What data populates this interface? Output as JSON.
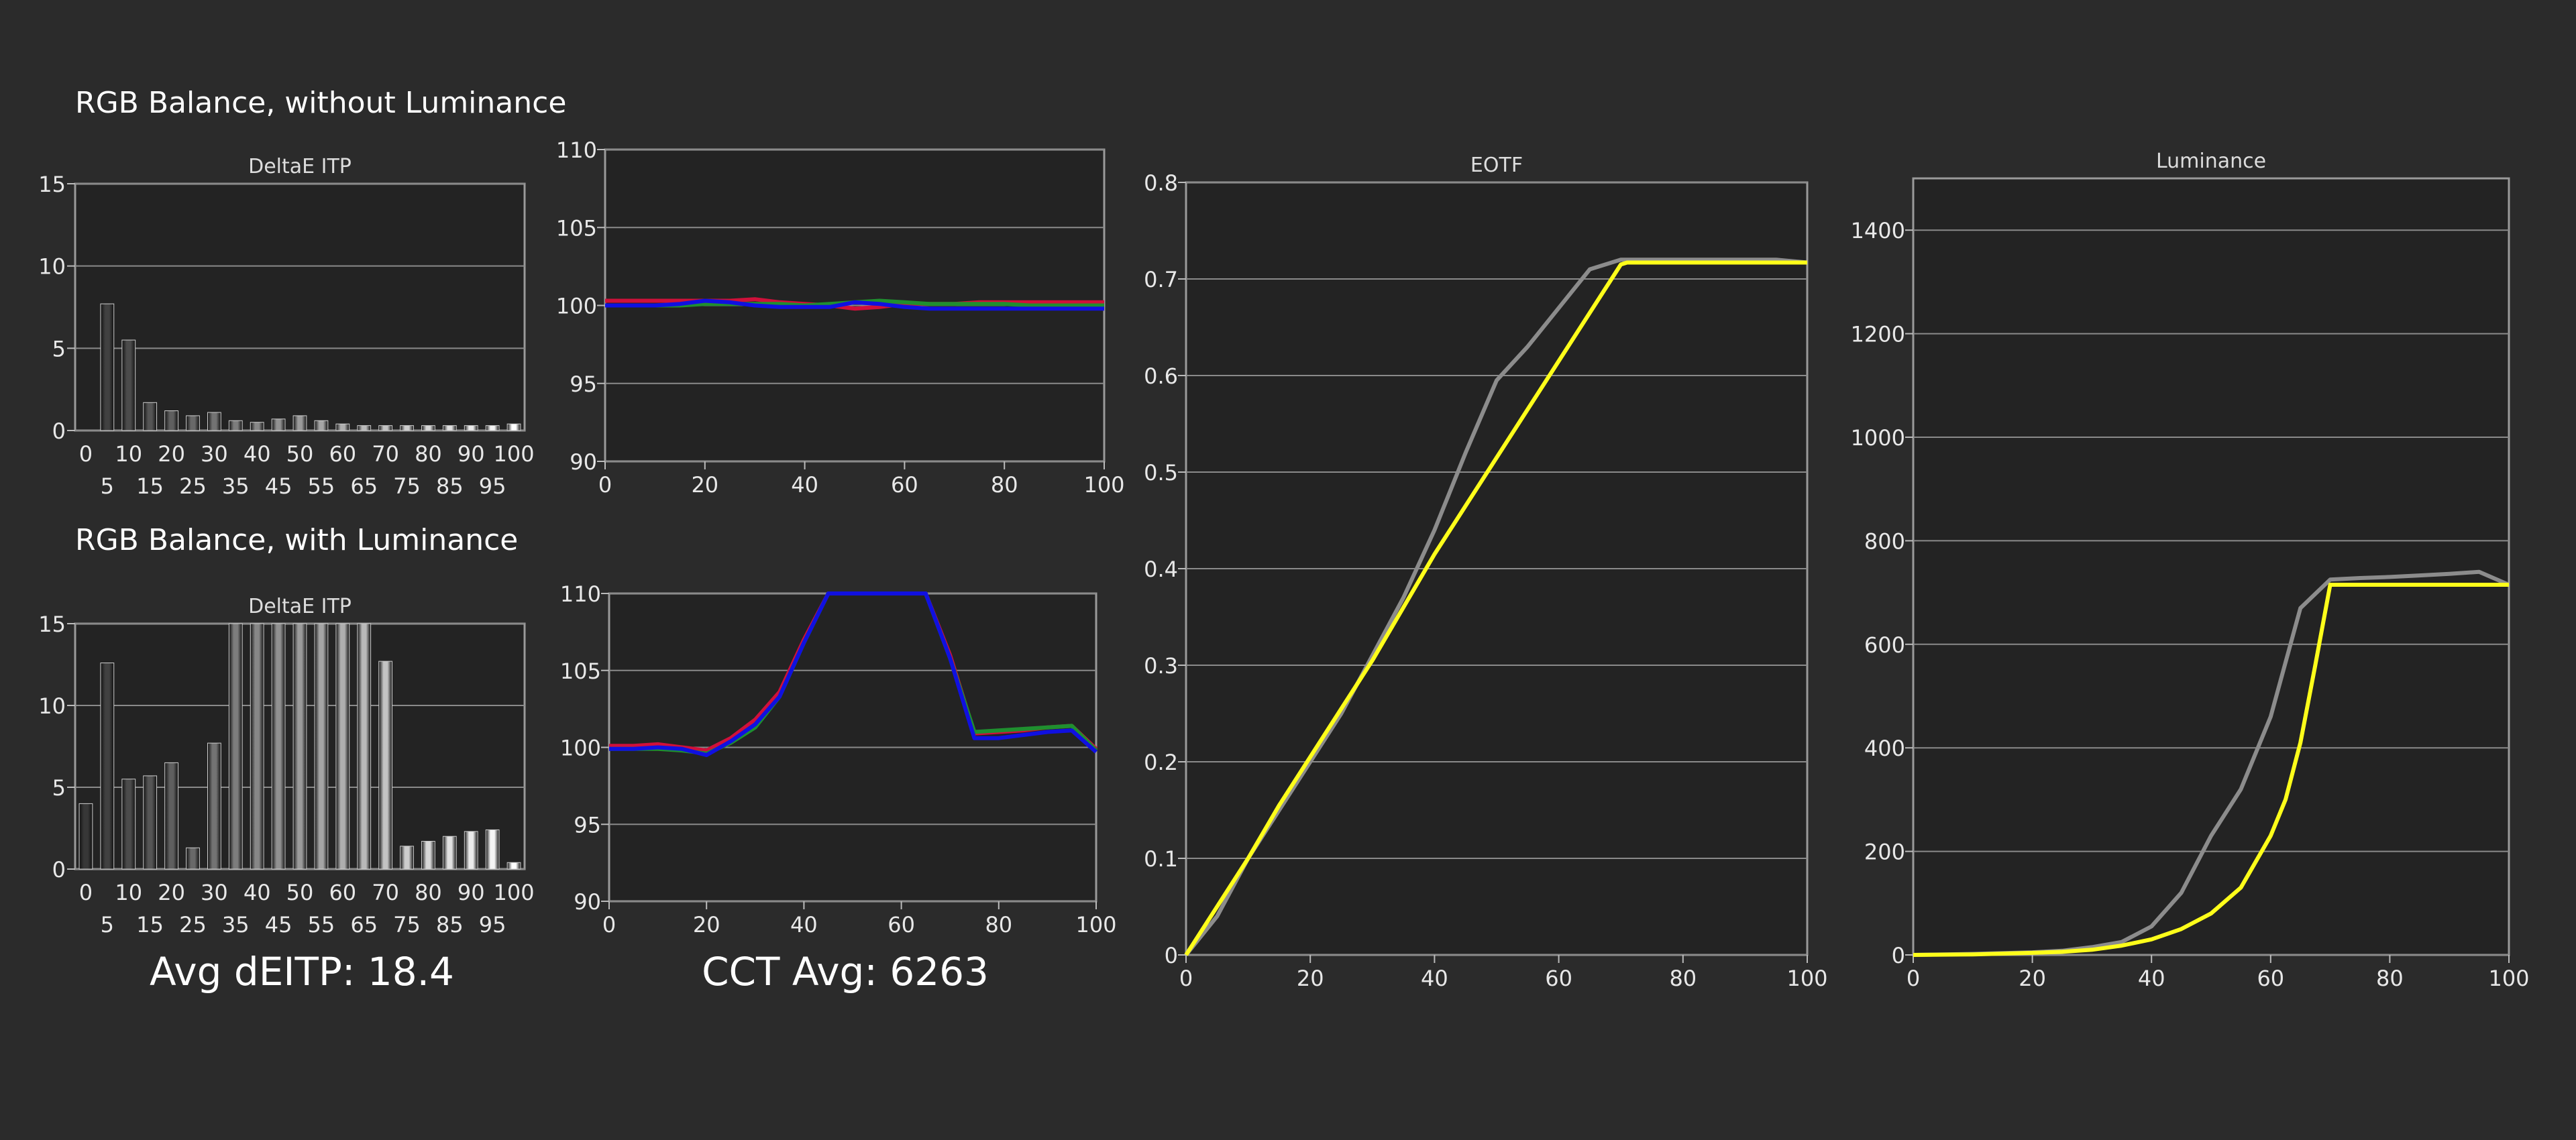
{
  "page": {
    "section_title_1": "RGB Balance, without Luminance",
    "section_title_2": "RGB Balance, with Luminance",
    "avg_deitp": "Avg dEITP: 18.4",
    "cct_avg": "CCT Avg: 6263"
  },
  "colors": {
    "background": "#2b2b2b",
    "plot_bg": "#232323",
    "grid": "#8a8a8a",
    "red": "#d0103a",
    "green": "#1f8f2f",
    "blue": "#1010e0",
    "gray": "#8c8c8c",
    "yellow": "#ffff1a"
  },
  "chart_data": [
    {
      "id": "deltae-without",
      "type": "bar",
      "title": "DeltaE ITP",
      "categories": [
        "0",
        "5",
        "10",
        "15",
        "20",
        "25",
        "30",
        "35",
        "40",
        "45",
        "50",
        "55",
        "60",
        "65",
        "70",
        "75",
        "80",
        "85",
        "90",
        "95",
        "100"
      ],
      "values": [
        0,
        7.7,
        5.5,
        1.7,
        1.2,
        0.9,
        1.1,
        0.6,
        0.5,
        0.7,
        0.9,
        0.6,
        0.4,
        0.3,
        0.3,
        0.3,
        0.3,
        0.3,
        0.3,
        0.3,
        0.4
      ],
      "ylim": [
        0,
        15
      ],
      "yticks": [
        0,
        5,
        10,
        15
      ],
      "xticks_top": [
        "0",
        "10",
        "20",
        "30",
        "40",
        "50",
        "60",
        "70",
        "80",
        "90",
        "100"
      ],
      "xticks_bottom": [
        "5",
        "15",
        "25",
        "35",
        "45",
        "55",
        "65",
        "75",
        "85",
        "95"
      ]
    },
    {
      "id": "rgb-without",
      "type": "line",
      "x": [
        0,
        5,
        10,
        15,
        20,
        25,
        30,
        35,
        40,
        45,
        50,
        55,
        60,
        65,
        70,
        75,
        80,
        85,
        90,
        95,
        100
      ],
      "series": [
        {
          "color": "red",
          "values": [
            100.3,
            100.3,
            100.3,
            100.3,
            100.3,
            100.3,
            100.4,
            100.2,
            100.1,
            100.0,
            99.8,
            99.9,
            100.1,
            100.1,
            100.1,
            100.2,
            100.2,
            100.2,
            100.2,
            100.2,
            100.2
          ]
        },
        {
          "color": "green",
          "values": [
            100.0,
            100.0,
            100.0,
            100.0,
            100.1,
            100.1,
            100.1,
            100.1,
            100.0,
            100.1,
            100.2,
            100.3,
            100.2,
            100.1,
            100.1,
            100.1,
            100.1,
            100.0,
            100.0,
            100.0,
            100.0
          ]
        },
        {
          "color": "blue",
          "values": [
            100.0,
            100.0,
            100.0,
            100.1,
            100.3,
            100.2,
            100.0,
            99.9,
            99.9,
            99.9,
            100.2,
            100.1,
            99.9,
            99.8,
            99.8,
            99.8,
            99.8,
            99.8,
            99.8,
            99.8,
            99.8
          ]
        }
      ],
      "xlim": [
        0,
        100
      ],
      "ylim": [
        90,
        110
      ],
      "xticks": [
        0,
        20,
        40,
        60,
        80,
        100
      ],
      "yticks": [
        90,
        95,
        100,
        105,
        110
      ]
    },
    {
      "id": "deltae-with",
      "type": "bar",
      "title": "DeltaE ITP",
      "categories": [
        "0",
        "5",
        "10",
        "15",
        "20",
        "25",
        "30",
        "35",
        "40",
        "45",
        "50",
        "55",
        "60",
        "65",
        "70",
        "75",
        "80",
        "85",
        "90",
        "95",
        "100"
      ],
      "values": [
        4.0,
        12.6,
        5.5,
        5.7,
        6.5,
        1.3,
        7.7,
        15,
        15,
        15,
        15,
        15,
        15,
        15,
        12.7,
        1.4,
        1.7,
        2.0,
        2.3,
        2.4,
        0.4
      ],
      "ylim": [
        0,
        15
      ],
      "yticks": [
        0,
        5,
        10,
        15
      ],
      "xticks_top": [
        "0",
        "10",
        "20",
        "30",
        "40",
        "50",
        "60",
        "70",
        "80",
        "90",
        "100"
      ],
      "xticks_bottom": [
        "5",
        "15",
        "25",
        "35",
        "45",
        "55",
        "65",
        "75",
        "85",
        "95"
      ]
    },
    {
      "id": "rgb-with",
      "type": "line",
      "x": [
        0,
        5,
        10,
        15,
        20,
        25,
        30,
        35,
        40,
        45,
        50,
        55,
        60,
        65,
        70,
        75,
        80,
        85,
        90,
        95,
        100
      ],
      "series": [
        {
          "color": "red",
          "values": [
            100.1,
            100.1,
            100.2,
            100.0,
            99.8,
            100.6,
            101.8,
            103.6,
            107.0,
            110,
            110,
            110,
            110,
            110,
            106.0,
            100.9,
            101.0,
            101.1,
            101.3,
            101.4,
            99.9
          ]
        },
        {
          "color": "green",
          "values": [
            99.9,
            99.9,
            99.9,
            99.8,
            99.6,
            100.3,
            101.3,
            103.3,
            106.8,
            110,
            110,
            110,
            110,
            110,
            105.8,
            101.0,
            101.1,
            101.2,
            101.3,
            101.4,
            99.8
          ]
        },
        {
          "color": "blue",
          "values": [
            99.9,
            99.9,
            100.0,
            99.9,
            99.5,
            100.4,
            101.5,
            103.3,
            106.8,
            110,
            110,
            110,
            110,
            110,
            105.8,
            100.6,
            100.6,
            100.8,
            101.0,
            101.1,
            99.7
          ]
        }
      ],
      "xlim": [
        0,
        100
      ],
      "ylim": [
        90,
        110
      ],
      "xticks": [
        0,
        20,
        40,
        60,
        80,
        100
      ],
      "yticks": [
        90,
        95,
        100,
        105,
        110
      ]
    },
    {
      "id": "eotf",
      "type": "line",
      "title": "EOTF",
      "series": [
        {
          "color": "gray",
          "x": [
            0,
            5,
            10,
            15,
            20,
            25,
            30,
            35,
            40,
            45,
            50,
            55,
            60,
            65,
            70,
            75,
            80,
            85,
            90,
            95,
            100
          ],
          "values": [
            0,
            0.04,
            0.1,
            0.15,
            0.2,
            0.25,
            0.31,
            0.37,
            0.44,
            0.52,
            0.595,
            0.63,
            0.67,
            0.71,
            0.72,
            0.72,
            0.72,
            0.72,
            0.72,
            0.72,
            0.717
          ]
        },
        {
          "color": "yellow",
          "x": [
            0,
            5,
            10,
            15,
            20,
            25,
            30,
            35,
            40,
            45,
            50,
            55,
            60,
            65,
            70,
            71,
            75,
            80,
            85,
            90,
            95,
            100
          ],
          "values": [
            0,
            0.05,
            0.1,
            0.155,
            0.205,
            0.255,
            0.305,
            0.36,
            0.415,
            0.465,
            0.515,
            0.565,
            0.615,
            0.665,
            0.715,
            0.717,
            0.717,
            0.717,
            0.717,
            0.717,
            0.717,
            0.717
          ]
        }
      ],
      "xlim": [
        0,
        100
      ],
      "ylim": [
        0,
        0.8
      ],
      "xticks": [
        0,
        20,
        40,
        60,
        80,
        100
      ],
      "yticks": [
        "0",
        "0.1",
        "0.2",
        "0.3",
        "0.4",
        "0.5",
        "0.6",
        "0.7",
        "0.8"
      ]
    },
    {
      "id": "luminance",
      "type": "line",
      "title": "Luminance",
      "series": [
        {
          "color": "gray",
          "x": [
            0,
            10,
            20,
            25,
            30,
            35,
            40,
            45,
            50,
            55,
            60,
            65,
            70,
            75,
            80,
            85,
            90,
            95,
            100
          ],
          "values": [
            0,
            2,
            5,
            8,
            15,
            25,
            55,
            120,
            230,
            320,
            460,
            670,
            725,
            728,
            730,
            733,
            736,
            740,
            715
          ]
        },
        {
          "color": "yellow",
          "x": [
            0,
            10,
            20,
            25,
            30,
            35,
            40,
            45,
            50,
            55,
            60,
            62.5,
            65,
            67.5,
            70,
            71,
            75,
            80,
            85,
            90,
            95,
            100
          ],
          "values": [
            0,
            1,
            4,
            6,
            10,
            18,
            30,
            50,
            80,
            130,
            230,
            300,
            410,
            560,
            715,
            715,
            715,
            715,
            715,
            715,
            715,
            715
          ]
        }
      ],
      "xlim": [
        0,
        100
      ],
      "ylim": [
        0,
        1500
      ],
      "xticks": [
        0,
        20,
        40,
        60,
        80,
        100
      ],
      "yticks": [
        0,
        200,
        400,
        600,
        800,
        1000,
        1200,
        1400
      ]
    }
  ]
}
